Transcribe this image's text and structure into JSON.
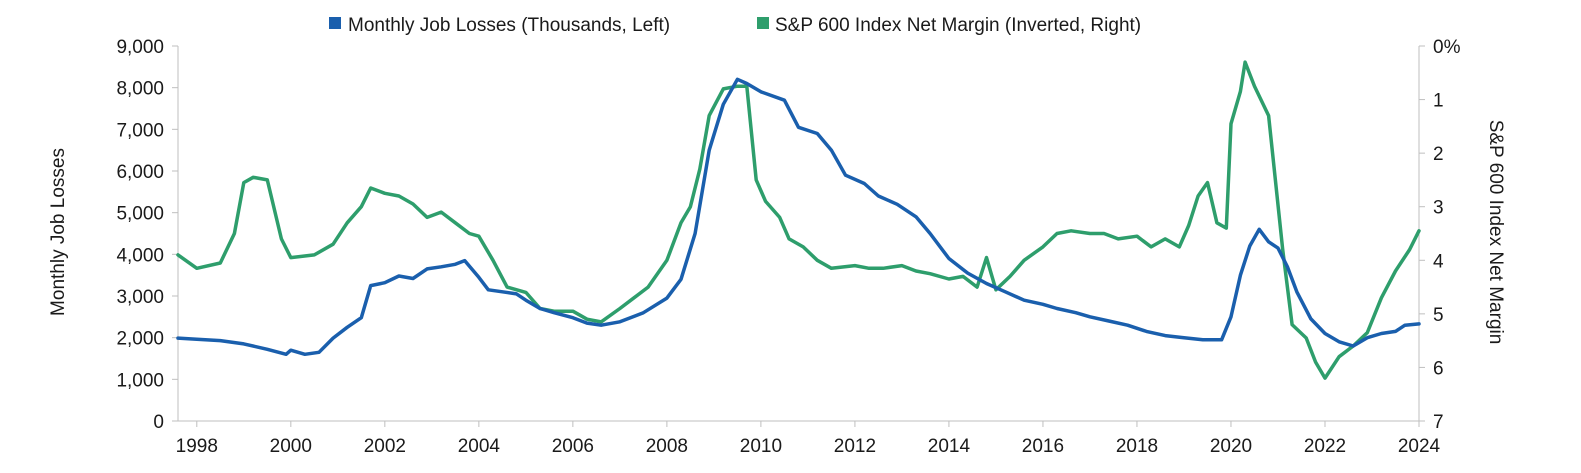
{
  "chart_data": {
    "type": "line",
    "x_unit": "year",
    "grid": false,
    "legend_position": "top-center",
    "series": [
      {
        "name": "Monthly Job Losses (Thousands, Left)",
        "axis": "left",
        "color": "#1a5fad",
        "points": [
          [
            1997.6,
            1990
          ],
          [
            1998.0,
            1960
          ],
          [
            1998.5,
            1930
          ],
          [
            1999.0,
            1850
          ],
          [
            1999.5,
            1720
          ],
          [
            1999.9,
            1600
          ],
          [
            2000.0,
            1700
          ],
          [
            2000.3,
            1600
          ],
          [
            2000.6,
            1650
          ],
          [
            2000.9,
            1990
          ],
          [
            2001.2,
            2250
          ],
          [
            2001.5,
            2480
          ],
          [
            2001.7,
            3250
          ],
          [
            2002.0,
            3320
          ],
          [
            2002.3,
            3480
          ],
          [
            2002.6,
            3420
          ],
          [
            2002.9,
            3650
          ],
          [
            2003.2,
            3700
          ],
          [
            2003.5,
            3760
          ],
          [
            2003.7,
            3850
          ],
          [
            2004.0,
            3450
          ],
          [
            2004.2,
            3150
          ],
          [
            2004.5,
            3100
          ],
          [
            2004.8,
            3050
          ],
          [
            2005.0,
            2900
          ],
          [
            2005.3,
            2700
          ],
          [
            2005.6,
            2600
          ],
          [
            2006.0,
            2480
          ],
          [
            2006.3,
            2350
          ],
          [
            2006.6,
            2300
          ],
          [
            2007.0,
            2380
          ],
          [
            2007.5,
            2600
          ],
          [
            2008.0,
            2950
          ],
          [
            2008.3,
            3400
          ],
          [
            2008.6,
            4500
          ],
          [
            2008.9,
            6500
          ],
          [
            2009.2,
            7600
          ],
          [
            2009.5,
            8200
          ],
          [
            2009.7,
            8100
          ],
          [
            2010.0,
            7900
          ],
          [
            2010.5,
            7700
          ],
          [
            2010.8,
            7050
          ],
          [
            2011.2,
            6900
          ],
          [
            2011.5,
            6500
          ],
          [
            2011.8,
            5900
          ],
          [
            2012.2,
            5700
          ],
          [
            2012.5,
            5400
          ],
          [
            2012.9,
            5200
          ],
          [
            2013.3,
            4900
          ],
          [
            2013.6,
            4500
          ],
          [
            2014.0,
            3900
          ],
          [
            2014.4,
            3550
          ],
          [
            2014.8,
            3300
          ],
          [
            2015.2,
            3100
          ],
          [
            2015.6,
            2900
          ],
          [
            2016.0,
            2800
          ],
          [
            2016.3,
            2700
          ],
          [
            2016.7,
            2600
          ],
          [
            2017.0,
            2500
          ],
          [
            2017.4,
            2400
          ],
          [
            2017.8,
            2300
          ],
          [
            2018.2,
            2150
          ],
          [
            2018.6,
            2050
          ],
          [
            2019.0,
            2000
          ],
          [
            2019.4,
            1950
          ],
          [
            2019.8,
            1950
          ],
          [
            2020.0,
            2500
          ],
          [
            2020.2,
            3500
          ],
          [
            2020.4,
            4200
          ],
          [
            2020.6,
            4600
          ],
          [
            2020.8,
            4300
          ],
          [
            2021.0,
            4150
          ],
          [
            2021.2,
            3700
          ],
          [
            2021.4,
            3100
          ],
          [
            2021.7,
            2450
          ],
          [
            2022.0,
            2100
          ],
          [
            2022.3,
            1900
          ],
          [
            2022.6,
            1800
          ],
          [
            2022.9,
            2000
          ],
          [
            2023.2,
            2100
          ],
          [
            2023.5,
            2150
          ],
          [
            2023.7,
            2300
          ],
          [
            2024.0,
            2330
          ]
        ]
      },
      {
        "name": "S&P 600 Index Net Margin (Inverted, Right)",
        "axis": "right",
        "color": "#2e9e6c",
        "points": [
          [
            1997.6,
            3.9
          ],
          [
            1998.0,
            4.15
          ],
          [
            1998.5,
            4.05
          ],
          [
            1998.8,
            3.5
          ],
          [
            1999.0,
            2.55
          ],
          [
            1999.2,
            2.45
          ],
          [
            1999.5,
            2.5
          ],
          [
            1999.8,
            3.6
          ],
          [
            2000.0,
            3.95
          ],
          [
            2000.5,
            3.9
          ],
          [
            2000.9,
            3.7
          ],
          [
            2001.2,
            3.3
          ],
          [
            2001.5,
            3.0
          ],
          [
            2001.7,
            2.65
          ],
          [
            2002.0,
            2.75
          ],
          [
            2002.3,
            2.8
          ],
          [
            2002.6,
            2.95
          ],
          [
            2002.9,
            3.2
          ],
          [
            2003.2,
            3.1
          ],
          [
            2003.5,
            3.3
          ],
          [
            2003.8,
            3.5
          ],
          [
            2004.0,
            3.55
          ],
          [
            2004.3,
            4.0
          ],
          [
            2004.6,
            4.5
          ],
          [
            2005.0,
            4.6
          ],
          [
            2005.3,
            4.9
          ],
          [
            2005.6,
            4.95
          ],
          [
            2006.0,
            4.95
          ],
          [
            2006.3,
            5.1
          ],
          [
            2006.6,
            5.15
          ],
          [
            2007.0,
            4.9
          ],
          [
            2007.3,
            4.7
          ],
          [
            2007.6,
            4.5
          ],
          [
            2008.0,
            4.0
          ],
          [
            2008.3,
            3.3
          ],
          [
            2008.5,
            3.0
          ],
          [
            2008.7,
            2.3
          ],
          [
            2008.9,
            1.3
          ],
          [
            2009.2,
            0.8
          ],
          [
            2009.5,
            0.75
          ],
          [
            2009.7,
            0.75
          ],
          [
            2009.9,
            2.5
          ],
          [
            2010.1,
            2.9
          ],
          [
            2010.4,
            3.2
          ],
          [
            2010.6,
            3.6
          ],
          [
            2010.9,
            3.75
          ],
          [
            2011.2,
            4.0
          ],
          [
            2011.5,
            4.15
          ],
          [
            2012.0,
            4.1
          ],
          [
            2012.3,
            4.15
          ],
          [
            2012.6,
            4.15
          ],
          [
            2013.0,
            4.1
          ],
          [
            2013.3,
            4.2
          ],
          [
            2013.6,
            4.25
          ],
          [
            2014.0,
            4.35
          ],
          [
            2014.3,
            4.3
          ],
          [
            2014.6,
            4.5
          ],
          [
            2014.8,
            3.95
          ],
          [
            2015.0,
            4.55
          ],
          [
            2015.3,
            4.3
          ],
          [
            2015.6,
            4.0
          ],
          [
            2016.0,
            3.75
          ],
          [
            2016.3,
            3.5
          ],
          [
            2016.6,
            3.45
          ],
          [
            2017.0,
            3.5
          ],
          [
            2017.3,
            3.5
          ],
          [
            2017.6,
            3.6
          ],
          [
            2018.0,
            3.55
          ],
          [
            2018.3,
            3.75
          ],
          [
            2018.6,
            3.6
          ],
          [
            2018.9,
            3.75
          ],
          [
            2019.1,
            3.35
          ],
          [
            2019.3,
            2.8
          ],
          [
            2019.5,
            2.55
          ],
          [
            2019.7,
            3.3
          ],
          [
            2019.9,
            3.4
          ],
          [
            2020.0,
            1.45
          ],
          [
            2020.2,
            0.85
          ],
          [
            2020.3,
            0.3
          ],
          [
            2020.5,
            0.75
          ],
          [
            2020.8,
            1.3
          ],
          [
            2021.1,
            3.8
          ],
          [
            2021.3,
            5.2
          ],
          [
            2021.6,
            5.45
          ],
          [
            2021.8,
            5.9
          ],
          [
            2022.0,
            6.2
          ],
          [
            2022.3,
            5.8
          ],
          [
            2022.6,
            5.6
          ],
          [
            2022.9,
            5.35
          ],
          [
            2023.2,
            4.7
          ],
          [
            2023.5,
            4.2
          ],
          [
            2023.8,
            3.8
          ],
          [
            2024.0,
            3.45
          ]
        ]
      }
    ],
    "left_axis": {
      "label": "Monthly Job Losses",
      "ylim": [
        0,
        9000
      ],
      "ticks": [
        "0",
        "1,000",
        "2,000",
        "3,000",
        "4,000",
        "5,000",
        "6,000",
        "7,000",
        "8,000",
        "9,000"
      ]
    },
    "right_axis": {
      "label": "S&P 600 Index Net Margin",
      "inverted": true,
      "ylim": [
        0,
        7
      ],
      "ticks": [
        "0%",
        "1",
        "2",
        "3",
        "4",
        "5",
        "6",
        "7"
      ]
    },
    "x_axis": {
      "xlim": [
        1997.6,
        2024.0
      ],
      "ticks": [
        "1998",
        "2000",
        "2002",
        "2004",
        "2006",
        "2008",
        "2010",
        "2012",
        "2014",
        "2016",
        "2018",
        "2020",
        "2022",
        "2024"
      ]
    }
  }
}
